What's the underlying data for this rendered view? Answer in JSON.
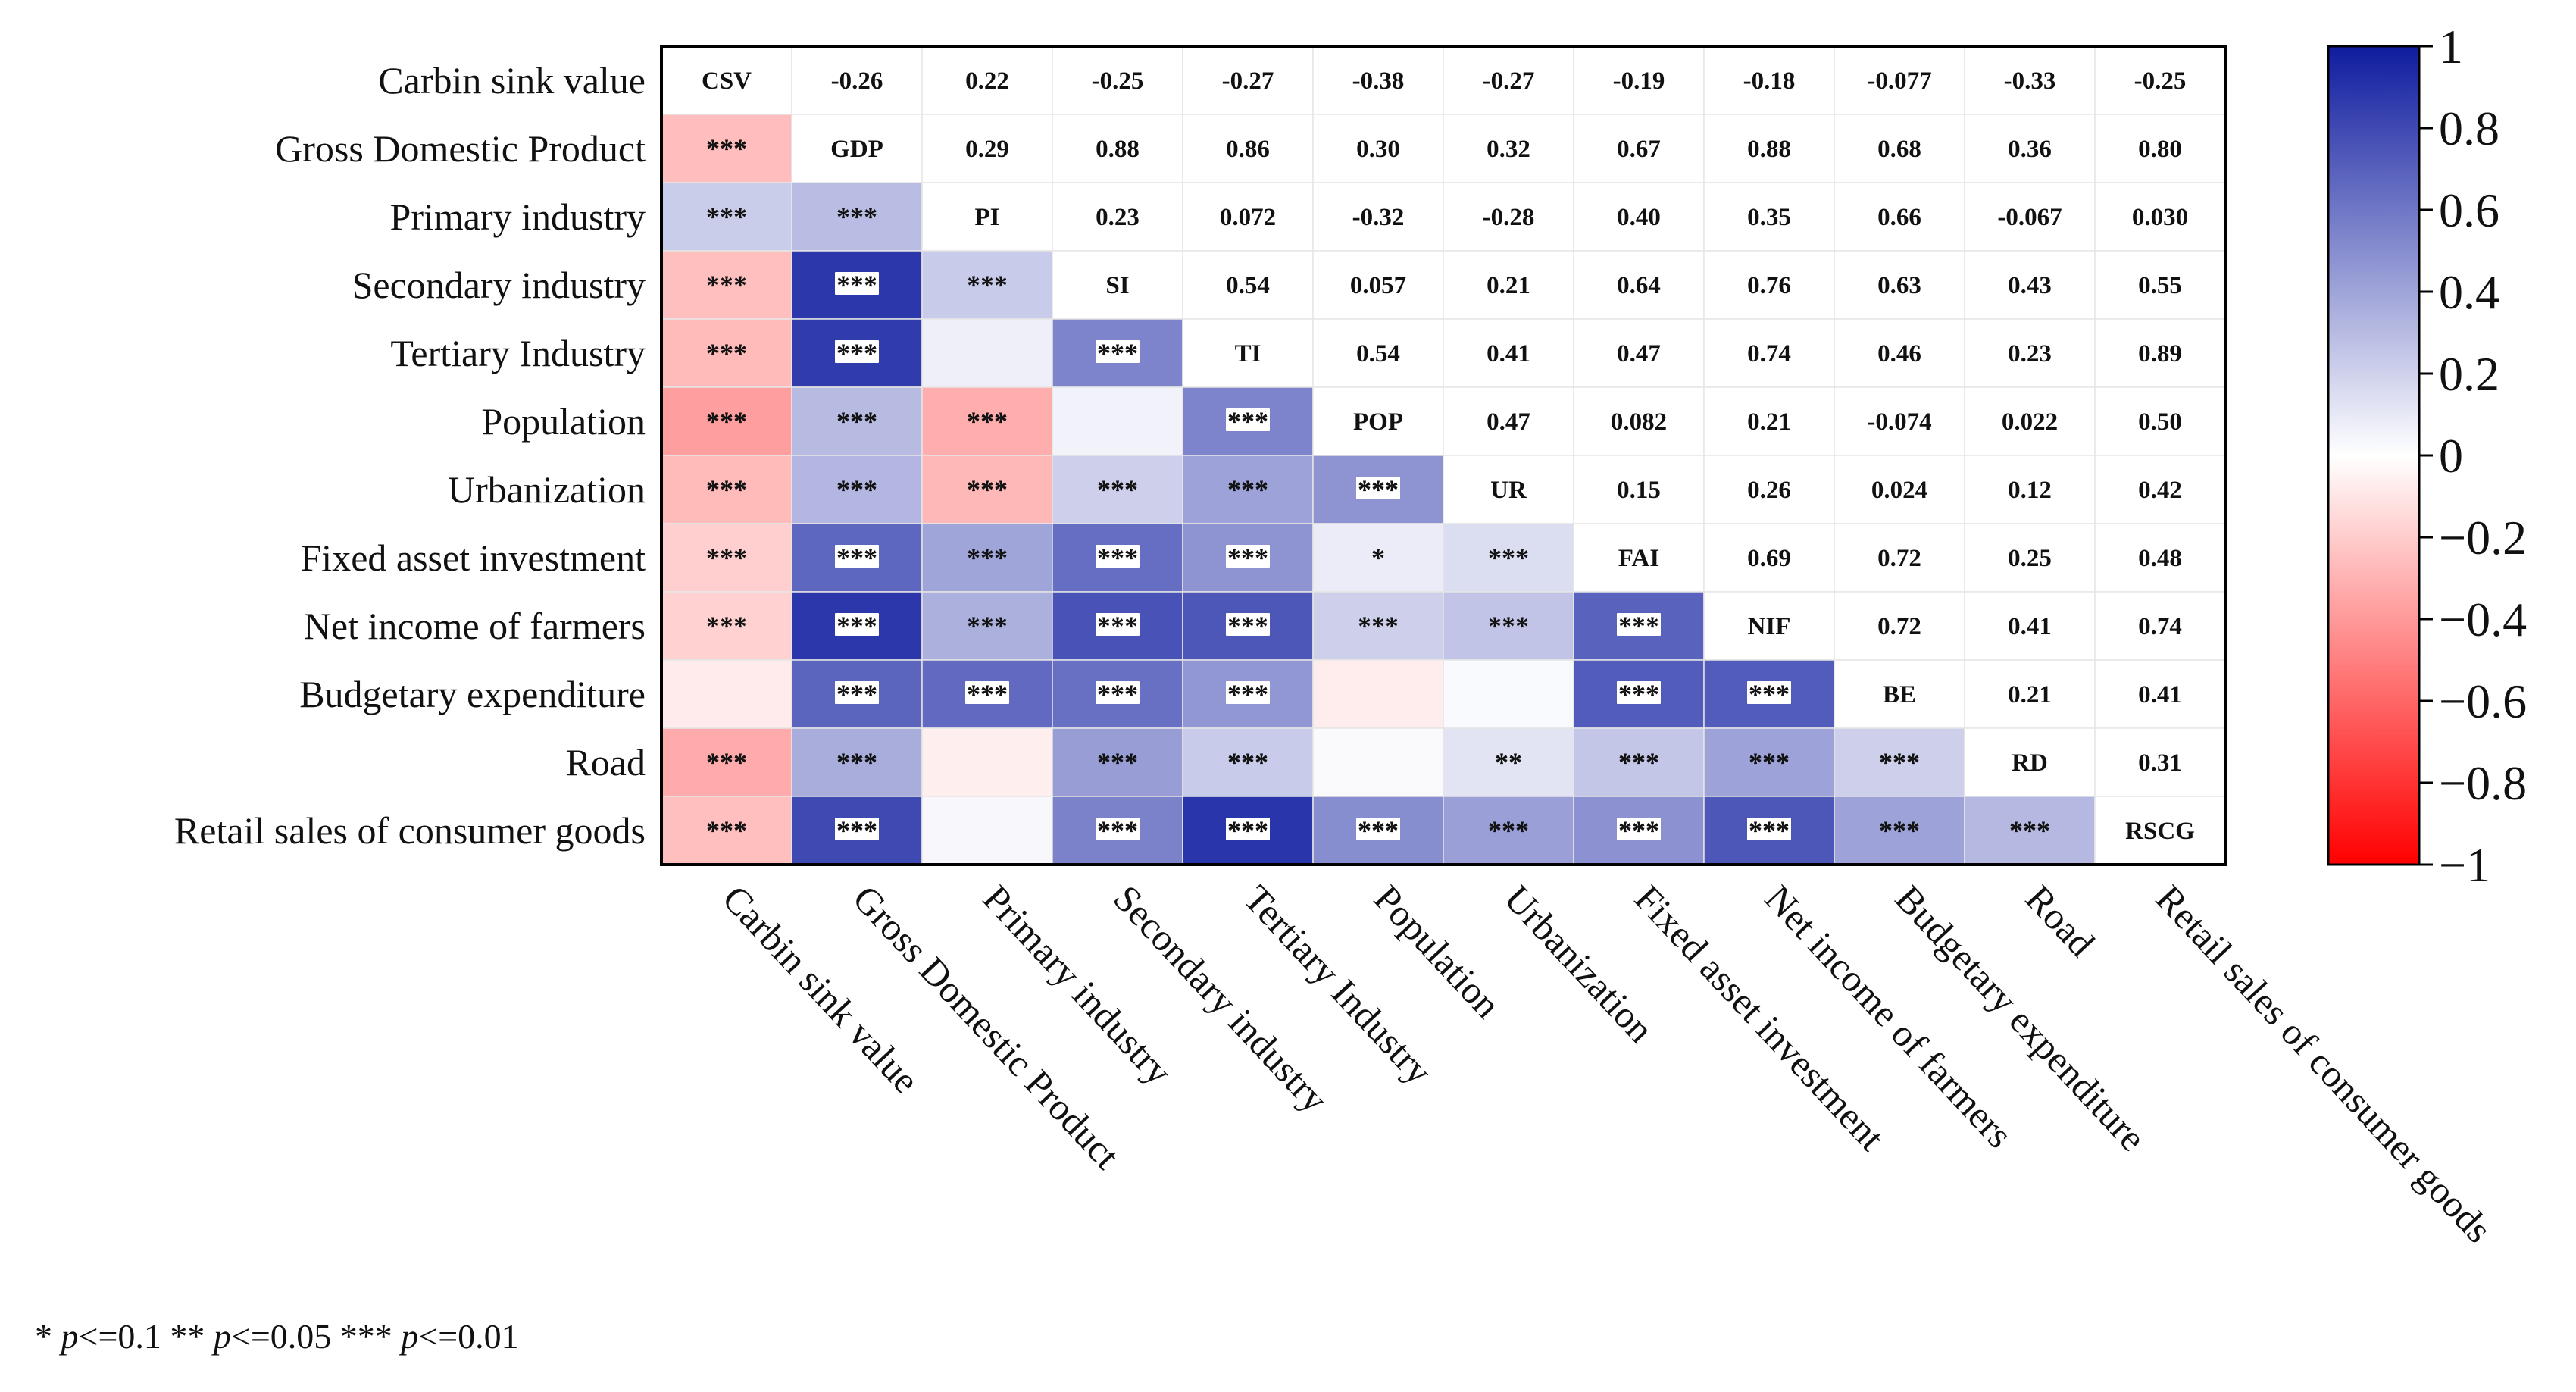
{
  "chart_data": {
    "type": "heatmap",
    "variables": [
      "Carbin sink value",
      "Gross Domestic Product",
      "Primary industry",
      "Secondary industry",
      "Tertiary Industry",
      "Population",
      "Urbanization",
      "Fixed asset investment",
      "Net income of farmers",
      "Budgetary expenditure",
      "Road",
      "Retail sales of consumer goods"
    ],
    "abbreviations": [
      "CSV",
      "GDP",
      "PI",
      "SI",
      "TI",
      "POP",
      "UR",
      "FAI",
      "NIF",
      "BE",
      "RD",
      "RSCG"
    ],
    "upper_labels": [
      [
        "CSV",
        "-0.26",
        "0.22",
        "-0.25",
        "-0.27",
        "-0.38",
        "-0.27",
        "-0.19",
        "-0.18",
        "-0.077",
        "-0.33",
        "-0.25"
      ],
      [
        "",
        "GDP",
        "0.29",
        "0.88",
        "0.86",
        "0.30",
        "0.32",
        "0.67",
        "0.88",
        "0.68",
        "0.36",
        "0.80"
      ],
      [
        "",
        "",
        "PI",
        "0.23",
        "0.072",
        "-0.32",
        "-0.28",
        "0.40",
        "0.35",
        "0.66",
        "-0.067",
        "0.030"
      ],
      [
        "",
        "",
        "",
        "SI",
        "0.54",
        "0.057",
        "0.21",
        "0.64",
        "0.76",
        "0.63",
        "0.43",
        "0.55"
      ],
      [
        "",
        "",
        "",
        "",
        "TI",
        "0.54",
        "0.41",
        "0.47",
        "0.74",
        "0.46",
        "0.23",
        "0.89"
      ],
      [
        "",
        "",
        "",
        "",
        "",
        "POP",
        "0.47",
        "0.082",
        "0.21",
        "-0.074",
        "0.022",
        "0.50"
      ],
      [
        "",
        "",
        "",
        "",
        "",
        "",
        "UR",
        "0.15",
        "0.26",
        "0.024",
        "0.12",
        "0.42"
      ],
      [
        "",
        "",
        "",
        "",
        "",
        "",
        "",
        "FAI",
        "0.69",
        "0.72",
        "0.25",
        "0.48"
      ],
      [
        "",
        "",
        "",
        "",
        "",
        "",
        "",
        "",
        "NIF",
        "0.72",
        "0.41",
        "0.74"
      ],
      [
        "",
        "",
        "",
        "",
        "",
        "",
        "",
        "",
        "",
        "BE",
        "0.21",
        "0.41"
      ],
      [
        "",
        "",
        "",
        "",
        "",
        "",
        "",
        "",
        "",
        "",
        "RD",
        "0.31"
      ],
      [
        "",
        "",
        "",
        "",
        "",
        "",
        "",
        "",
        "",
        "",
        "",
        "RSCG"
      ]
    ],
    "significance": [
      [
        "",
        "",
        "",
        "",
        "",
        "",
        "",
        "",
        "",
        "",
        "",
        ""
      ],
      [
        "***",
        "",
        "",
        "",
        "",
        "",
        "",
        "",
        "",
        "",
        "",
        ""
      ],
      [
        "***",
        "***",
        "",
        "",
        "",
        "",
        "",
        "",
        "",
        "",
        "",
        ""
      ],
      [
        "***",
        "***",
        "***",
        "",
        "",
        "",
        "",
        "",
        "",
        "",
        "",
        ""
      ],
      [
        "***",
        "***",
        "",
        "***",
        "",
        "",
        "",
        "",
        "",
        "",
        "",
        ""
      ],
      [
        "***",
        "***",
        "***",
        "",
        "***",
        "",
        "",
        "",
        "",
        "",
        "",
        ""
      ],
      [
        "***",
        "***",
        "***",
        "***",
        "***",
        "***",
        "",
        "",
        "",
        "",
        "",
        ""
      ],
      [
        "***",
        "***",
        "***",
        "***",
        "***",
        "*",
        "***",
        "",
        "",
        "",
        "",
        ""
      ],
      [
        "***",
        "***",
        "***",
        "***",
        "***",
        "***",
        "***",
        "***",
        "",
        "",
        "",
        ""
      ],
      [
        "",
        "***",
        "***",
        "***",
        "***",
        "",
        "",
        "***",
        "***",
        "",
        "",
        ""
      ],
      [
        "***",
        "***",
        "",
        "***",
        "***",
        "",
        "**",
        "***",
        "***",
        "***",
        "",
        ""
      ],
      [
        "***",
        "***",
        "",
        "***",
        "***",
        "***",
        "***",
        "***",
        "***",
        "***",
        "***",
        ""
      ]
    ],
    "colorbar": {
      "range": [
        -1,
        1
      ],
      "ticks": [
        1,
        0.8,
        0.6,
        0.4,
        0.2,
        0,
        -0.2,
        -0.4,
        -0.6,
        -0.8,
        -1
      ],
      "tick_labels": [
        "1",
        "0.8",
        "0.6",
        "0.4",
        "0.2",
        "0",
        "−0.2",
        "−0.4",
        "−0.6",
        "−0.8",
        "−1"
      ],
      "colors": {
        "positive": "#0f1c9f",
        "zero": "#ffffff",
        "negative": "#ff0000"
      }
    },
    "footnote": {
      "p1": "* ",
      "i1": "p",
      "t1": "<=0.1  ** ",
      "i2": "p",
      "t2": "<=0.05  *** ",
      "i3": "p",
      "t3": "<=0.01"
    }
  }
}
